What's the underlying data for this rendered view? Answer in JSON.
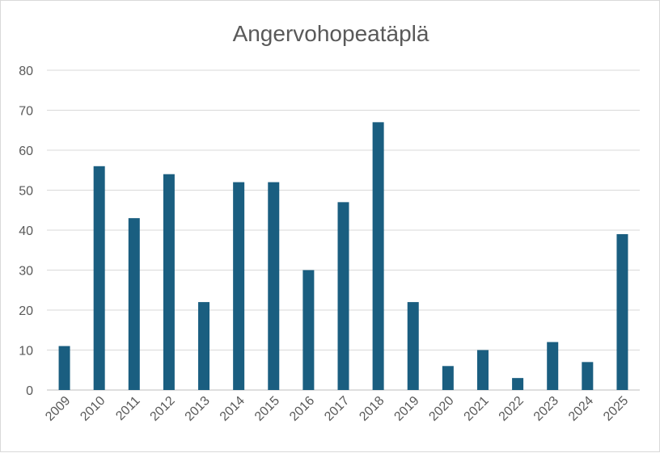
{
  "chart_data": {
    "type": "bar",
    "title": "Angervohopeatäplä",
    "xlabel": "",
    "ylabel": "",
    "categories": [
      "2009",
      "2010",
      "2011",
      "2012",
      "2013",
      "2014",
      "2015",
      "2016",
      "2017",
      "2018",
      "2019",
      "2020",
      "2021",
      "2022",
      "2023",
      "2024",
      "2025"
    ],
    "values": [
      11,
      56,
      43,
      54,
      22,
      52,
      52,
      30,
      47,
      67,
      22,
      6,
      10,
      3,
      12,
      7,
      39
    ],
    "ylim": [
      0,
      80
    ],
    "yticks": [
      0,
      10,
      20,
      30,
      40,
      50,
      60,
      70,
      80
    ],
    "grid": true,
    "legend": "none",
    "bar_color": "#1a5e80"
  }
}
